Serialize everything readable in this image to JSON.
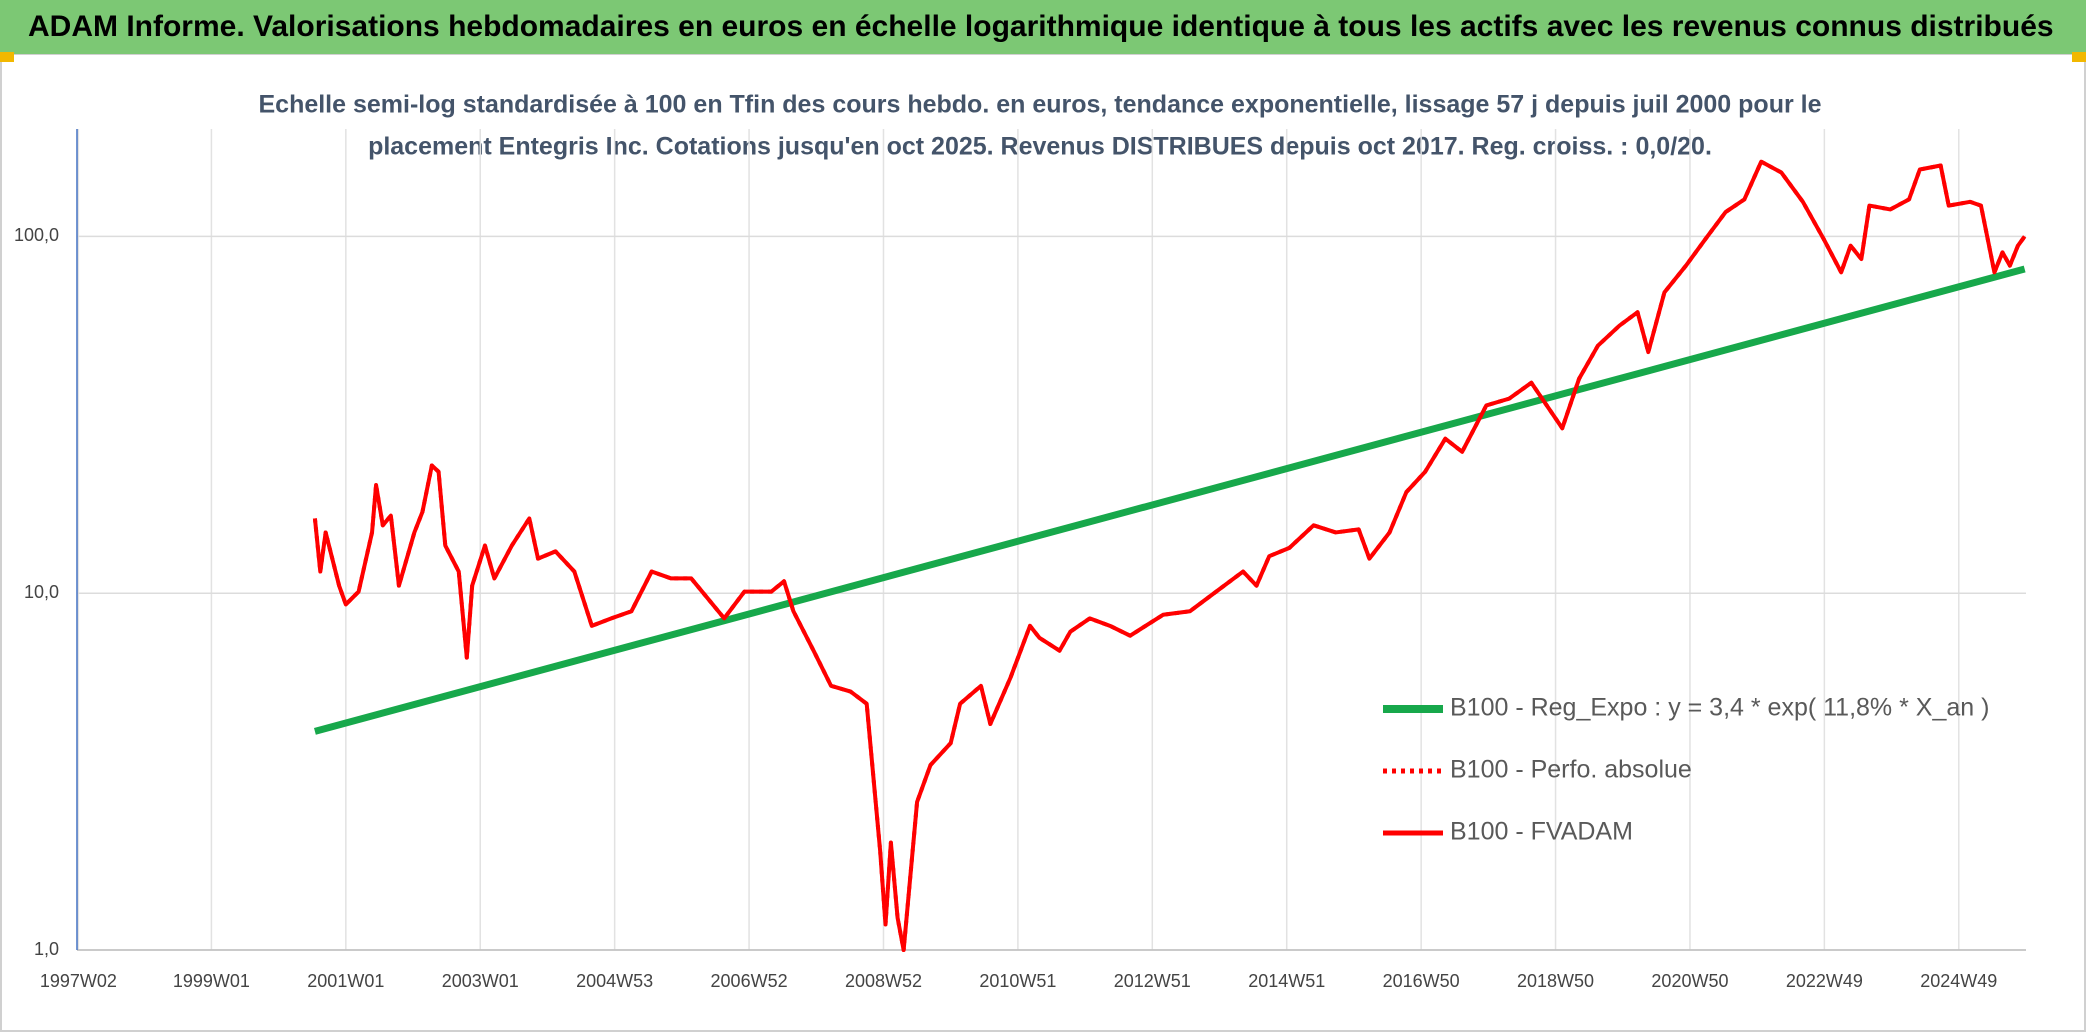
{
  "header": {
    "title": "ADAM Informe. Valorisations hebdomadaires en euros en échelle logarithmique identique à tous les actifs avec les revenus connus distribués"
  },
  "chart_data": {
    "type": "line",
    "title": [
      "Echelle semi-log standardisée à 100 en Tfin des cours hebdo. en euros, tendance exponentielle, lissage 57 j depuis juil 2000 pour le",
      "placement Entegris Inc. Cotations jusqu'en oct 2025. Revenus DISTRIBUES depuis oct 2017. Reg. croiss. : 0,0/20."
    ],
    "xlim": [
      1997,
      2026
    ],
    "xticks": [
      {
        "value": 1997.02,
        "label": "1997W02"
      },
      {
        "value": 1999.0,
        "label": "1999W01"
      },
      {
        "value": 2001.0,
        "label": "2001W01"
      },
      {
        "value": 2003.0,
        "label": "2003W01"
      },
      {
        "value": 2005.0,
        "label": "2004W53"
      },
      {
        "value": 2007.0,
        "label": "2006W52"
      },
      {
        "value": 2009.0,
        "label": "2008W52"
      },
      {
        "value": 2011.0,
        "label": "2010W51"
      },
      {
        "value": 2013.0,
        "label": "2012W51"
      },
      {
        "value": 2015.0,
        "label": "2014W51"
      },
      {
        "value": 2017.0,
        "label": "2016W50"
      },
      {
        "value": 2019.0,
        "label": "2018W50"
      },
      {
        "value": 2021.0,
        "label": "2020W50"
      },
      {
        "value": 2023.0,
        "label": "2022W49"
      },
      {
        "value": 2025.0,
        "label": "2024W49"
      }
    ],
    "ylim": [
      1,
      200
    ],
    "yscale": "log",
    "yticks": [
      {
        "value": 1,
        "label": "1,0"
      },
      {
        "value": 10,
        "label": "10,0"
      },
      {
        "value": 100,
        "label": "100,0"
      }
    ],
    "grid": true,
    "series": [
      {
        "name": "B100 - Reg_Expo : y = 3,4 * exp( 11,8% *  X_an )",
        "color": "#17a84b",
        "style": "solid",
        "width": 7,
        "x": [
          2000.54,
          2025.98
        ],
        "values": [
          4.1,
          81
        ]
      },
      {
        "name": "B100 - Perfo. absolue",
        "color": "#ff0000",
        "style": "dotted",
        "width": 4,
        "x": [
          2000.54,
          2000.62,
          2000.7,
          2000.9,
          2001.0,
          2001.19,
          2001.39,
          2001.45,
          2001.55,
          2001.67,
          2001.79,
          2002.02,
          2002.14,
          2002.28,
          2002.38,
          2002.48,
          2002.68,
          2002.8,
          2002.88,
          2003.07,
          2003.21,
          2003.47,
          2003.73,
          2003.86,
          2004.12,
          2004.4,
          2004.66,
          2004.95,
          2005.25,
          2005.55,
          2005.84,
          2006.14,
          2006.63,
          2006.93,
          2007.33,
          2007.52,
          2007.66,
          2007.96,
          2008.22,
          2008.51,
          2008.75,
          2008.95,
          2009.03,
          2009.11,
          2009.21,
          2009.3,
          2009.5,
          2009.7,
          2010.0,
          2010.14,
          2010.45,
          2010.59,
          2010.89,
          2011.18,
          2011.32,
          2011.62,
          2011.78,
          2012.07,
          2012.37,
          2012.67,
          2013.16,
          2013.56,
          2013.95,
          2014.35,
          2014.55,
          2014.74,
          2015.04,
          2015.4,
          2015.73,
          2016.07,
          2016.23,
          2016.53,
          2016.78,
          2017.06,
          2017.36,
          2017.61,
          2017.97,
          2018.31,
          2018.64,
          2018.8,
          2019.1,
          2019.35,
          2019.63,
          2019.95,
          2020.22,
          2020.38,
          2020.62,
          2020.94,
          2021.23,
          2021.53,
          2021.81,
          2022.06,
          2022.36,
          2022.68,
          2022.99,
          2023.25,
          2023.39,
          2023.55,
          2023.67,
          2023.98,
          2024.26,
          2024.42,
          2024.73,
          2024.85,
          2025.17,
          2025.33,
          2025.45,
          2025.53,
          2025.65,
          2025.76,
          2025.88,
          2025.98
        ],
        "values": [
          16.2,
          11.5,
          14.8,
          10.5,
          9.3,
          10.1,
          14.8,
          20.1,
          15.5,
          16.5,
          10.5,
          14.8,
          16.9,
          22.8,
          21.9,
          13.6,
          11.5,
          6.6,
          10.5,
          13.6,
          11.0,
          13.6,
          16.2,
          12.5,
          13.1,
          11.5,
          8.1,
          8.5,
          8.9,
          11.5,
          11.0,
          11.0,
          8.5,
          10.1,
          10.1,
          10.8,
          8.9,
          6.9,
          5.5,
          5.3,
          4.9,
          1.9,
          1.18,
          2.0,
          1.23,
          1.0,
          2.6,
          3.3,
          3.8,
          4.9,
          5.5,
          4.3,
          5.8,
          8.1,
          7.5,
          6.9,
          7.8,
          8.5,
          8.1,
          7.6,
          8.7,
          8.9,
          10.1,
          11.5,
          10.5,
          12.7,
          13.4,
          15.5,
          14.8,
          15.1,
          12.5,
          14.8,
          19.2,
          21.9,
          27.1,
          24.9,
          33.6,
          35.1,
          38.9,
          35.1,
          29.0,
          39.9,
          49.4,
          56.2,
          61.3,
          47.4,
          69.7,
          82.8,
          98.3,
          117,
          127,
          162,
          151,
          125,
          98.3,
          79.3,
          94.2,
          86.4,
          122,
          119,
          127,
          154,
          158,
          122,
          125,
          122,
          94.2,
          79.3,
          90.2,
          82.8,
          94.2,
          100
        ]
      },
      {
        "name": "B100 - FVADAM",
        "color": "#ff0000",
        "style": "solid",
        "width": 4,
        "x": [
          2000.54,
          2000.62,
          2000.7,
          2000.9,
          2001.0,
          2001.19,
          2001.39,
          2001.45,
          2001.55,
          2001.67,
          2001.79,
          2002.02,
          2002.14,
          2002.28,
          2002.38,
          2002.48,
          2002.68,
          2002.8,
          2002.88,
          2003.07,
          2003.21,
          2003.47,
          2003.73,
          2003.86,
          2004.12,
          2004.4,
          2004.66,
          2004.95,
          2005.25,
          2005.55,
          2005.84,
          2006.14,
          2006.63,
          2006.93,
          2007.33,
          2007.52,
          2007.66,
          2007.96,
          2008.22,
          2008.51,
          2008.75,
          2008.95,
          2009.03,
          2009.11,
          2009.21,
          2009.3,
          2009.5,
          2009.7,
          2010.0,
          2010.14,
          2010.45,
          2010.59,
          2010.89,
          2011.18,
          2011.32,
          2011.62,
          2011.78,
          2012.07,
          2012.37,
          2012.67,
          2013.16,
          2013.56,
          2013.95,
          2014.35,
          2014.55,
          2014.74,
          2015.04,
          2015.4,
          2015.73,
          2016.07,
          2016.23,
          2016.53,
          2016.78,
          2017.06,
          2017.36,
          2017.61,
          2017.97,
          2018.31,
          2018.64,
          2018.8,
          2019.1,
          2019.35,
          2019.63,
          2019.95,
          2020.22,
          2020.38,
          2020.62,
          2020.94,
          2021.23,
          2021.53,
          2021.81,
          2022.06,
          2022.36,
          2022.68,
          2022.99,
          2023.25,
          2023.39,
          2023.55,
          2023.67,
          2023.98,
          2024.26,
          2024.42,
          2024.73,
          2024.85,
          2025.17,
          2025.33,
          2025.45,
          2025.53,
          2025.65,
          2025.76,
          2025.88,
          2025.98
        ],
        "values": [
          16.2,
          11.5,
          14.8,
          10.5,
          9.3,
          10.1,
          14.8,
          20.1,
          15.5,
          16.5,
          10.5,
          14.8,
          16.9,
          22.8,
          21.9,
          13.6,
          11.5,
          6.6,
          10.5,
          13.6,
          11.0,
          13.6,
          16.2,
          12.5,
          13.1,
          11.5,
          8.1,
          8.5,
          8.9,
          11.5,
          11.0,
          11.0,
          8.5,
          10.1,
          10.1,
          10.8,
          8.9,
          6.9,
          5.5,
          5.3,
          4.9,
          1.9,
          1.18,
          2.0,
          1.23,
          1.0,
          2.6,
          3.3,
          3.8,
          4.9,
          5.5,
          4.3,
          5.8,
          8.1,
          7.5,
          6.9,
          7.8,
          8.5,
          8.1,
          7.6,
          8.7,
          8.9,
          10.1,
          11.5,
          10.5,
          12.7,
          13.4,
          15.5,
          14.8,
          15.1,
          12.5,
          14.8,
          19.2,
          21.9,
          27.1,
          24.9,
          33.6,
          35.1,
          38.9,
          35.1,
          29.0,
          39.9,
          49.4,
          56.2,
          61.3,
          47.4,
          69.7,
          82.8,
          98.3,
          117,
          127,
          162,
          151,
          125,
          98.3,
          79.3,
          94.2,
          86.4,
          122,
          119,
          127,
          154,
          158,
          122,
          125,
          122,
          94.2,
          79.3,
          90.2,
          82.8,
          94.2,
          100
        ]
      }
    ]
  }
}
